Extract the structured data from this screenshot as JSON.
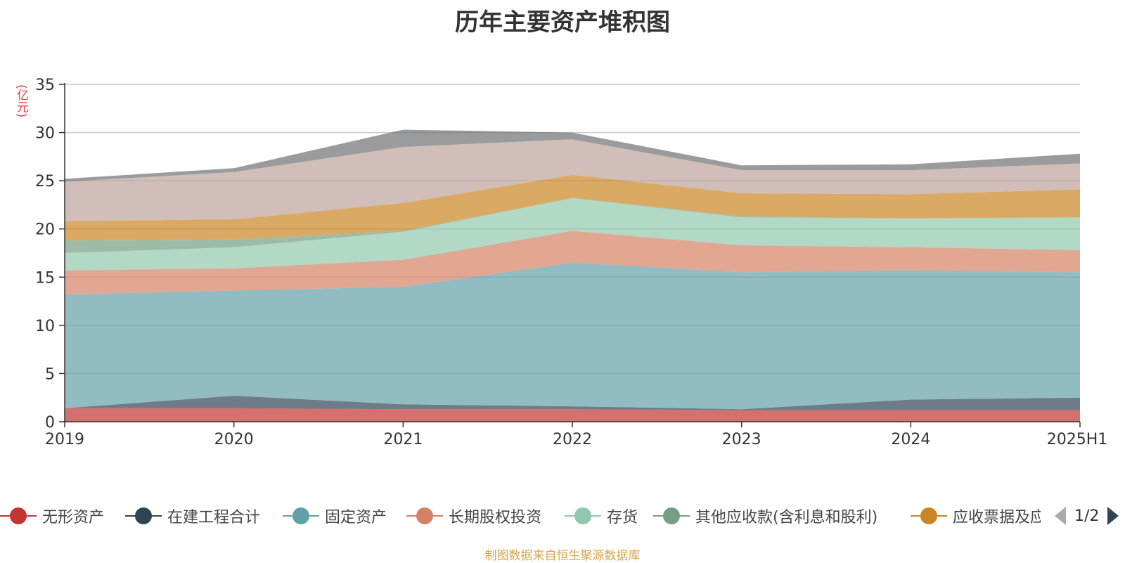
{
  "chart_data": {
    "type": "area",
    "title": "历年主要资产堆积图",
    "unit_label": "(亿元)",
    "x": [
      "2019",
      "2020",
      "2021",
      "2022",
      "2023",
      "2024",
      "2025H1"
    ],
    "ylim": [
      0,
      35
    ],
    "y_ticks": [
      "0",
      "5",
      "10",
      "15",
      "20",
      "25",
      "30",
      "35"
    ],
    "stacked": true,
    "grid": true,
    "series": [
      {
        "name": "无形资产",
        "color": "#c23531",
        "values": [
          1.4,
          1.4,
          1.3,
          1.3,
          1.2,
          1.2,
          1.2
        ]
      },
      {
        "name": "在建工程合计",
        "color": "#2f4554",
        "values": [
          0.0,
          1.3,
          0.5,
          0.3,
          0.1,
          1.1,
          1.3
        ]
      },
      {
        "name": "固定资产",
        "color": "#61a0a8",
        "values": [
          11.8,
          10.9,
          12.2,
          14.9,
          14.2,
          13.4,
          13.0
        ]
      },
      {
        "name": "长期股权投资",
        "color": "#d48265",
        "values": [
          2.5,
          2.3,
          2.8,
          3.3,
          2.8,
          2.4,
          2.3
        ]
      },
      {
        "name": "存货",
        "color": "#91c7ae",
        "values": [
          1.8,
          2.2,
          2.9,
          3.4,
          2.9,
          3.0,
          3.4
        ]
      },
      {
        "name": "其他应收款(含利息和股利)",
        "color": "#749f83",
        "values": [
          1.3,
          0.8,
          0.1,
          0.0,
          0.1,
          0.0,
          0.0
        ]
      },
      {
        "name": "应收票据及应收账款",
        "color": "#ca8622",
        "values": [
          2.0,
          2.1,
          2.9,
          2.4,
          2.4,
          2.5,
          2.9
        ]
      },
      {
        "name": "",
        "color": "#bda29a",
        "values": [
          4.1,
          4.9,
          5.8,
          3.7,
          2.4,
          2.5,
          2.7
        ]
      },
      {
        "name": "",
        "color": "#6e7074",
        "values": [
          0.3,
          0.4,
          1.8,
          0.7,
          0.5,
          0.6,
          1.0
        ]
      }
    ]
  },
  "legend": {
    "items": [
      {
        "label": "无形资产",
        "color": "#c23531"
      },
      {
        "label": "在建工程合计",
        "color": "#2f4554"
      },
      {
        "label": "固定资产",
        "color": "#61a0a8"
      },
      {
        "label": "长期股权投资",
        "color": "#d48265"
      },
      {
        "label": "存货",
        "color": "#91c7ae"
      },
      {
        "label": "其他应收款(含利息和股利)",
        "color": "#749f83"
      },
      {
        "label": "应收票据及应收账款",
        "color": "#ca8622"
      }
    ],
    "page_text": "1/2"
  },
  "footer": {
    "source": "制图数据来自恒生聚源数据库"
  }
}
